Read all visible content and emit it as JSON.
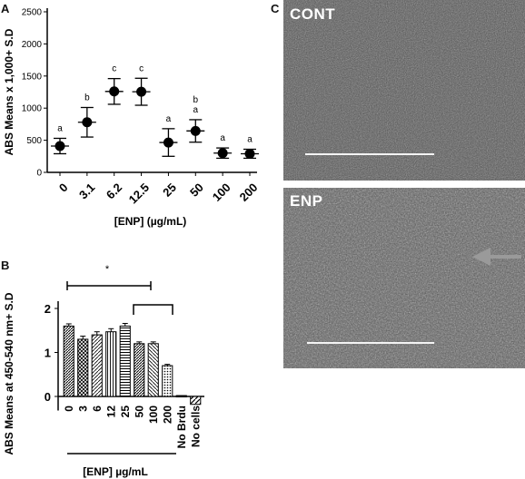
{
  "panels": {
    "a": {
      "letter": "A"
    },
    "b": {
      "letter": "B"
    },
    "c": {
      "letter": "C"
    }
  },
  "chart_data": [
    {
      "panel": "A",
      "type": "scatter",
      "categories": [
        "0",
        "3.1",
        "6.2",
        "12.5",
        "25",
        "50",
        "100",
        "200"
      ],
      "values": [
        410,
        780,
        1260,
        1255,
        465,
        645,
        300,
        290
      ],
      "errors": [
        120,
        230,
        200,
        210,
        215,
        175,
        80,
        70
      ],
      "letters": [
        "a",
        "b",
        "c",
        "c",
        "a",
        "b\na",
        "a",
        "a"
      ],
      "xlabel": "[ENP] (µg/mL)",
      "ylabel": "ABS Means x 1,000+ S.D",
      "ylim": [
        0,
        2500
      ],
      "yticks": [
        0,
        500,
        1000,
        1500,
        2000,
        2500
      ],
      "grid": false,
      "colors": {
        "marker": "#000000"
      }
    },
    {
      "panel": "B",
      "type": "bar",
      "categories": [
        "0",
        "3",
        "6",
        "12",
        "25",
        "50",
        "100",
        "200",
        "No Brdu",
        "No cells"
      ],
      "values": [
        1.6,
        1.3,
        1.4,
        1.47,
        1.6,
        1.2,
        1.2,
        0.7,
        0.02,
        -0.18
      ],
      "errors": [
        0.05,
        0.07,
        0.07,
        0.07,
        0.06,
        0.04,
        0.04,
        0.03,
        0.0,
        0.0
      ],
      "patterns": [
        "dense-diagonal",
        "crosshatch",
        "diagonal-right",
        "vertical",
        "horizontal",
        "dense-diagonal",
        "diagonal-left",
        "dotted",
        "solid",
        "sparse-diagonal"
      ],
      "xlabel": "[ENP] µg/mL",
      "ylabel": "ABS Means at 450-540 nm+ S.D",
      "ylim": [
        -0.3,
        2.2
      ],
      "yticks": [
        0,
        1,
        2
      ],
      "significance": "*",
      "grid": false
    }
  ],
  "images": {
    "cont": {
      "label": "CONT",
      "scale_bar": "scale-bar"
    },
    "enp": {
      "label": "ENP",
      "arrow": "gray-arrow"
    }
  }
}
